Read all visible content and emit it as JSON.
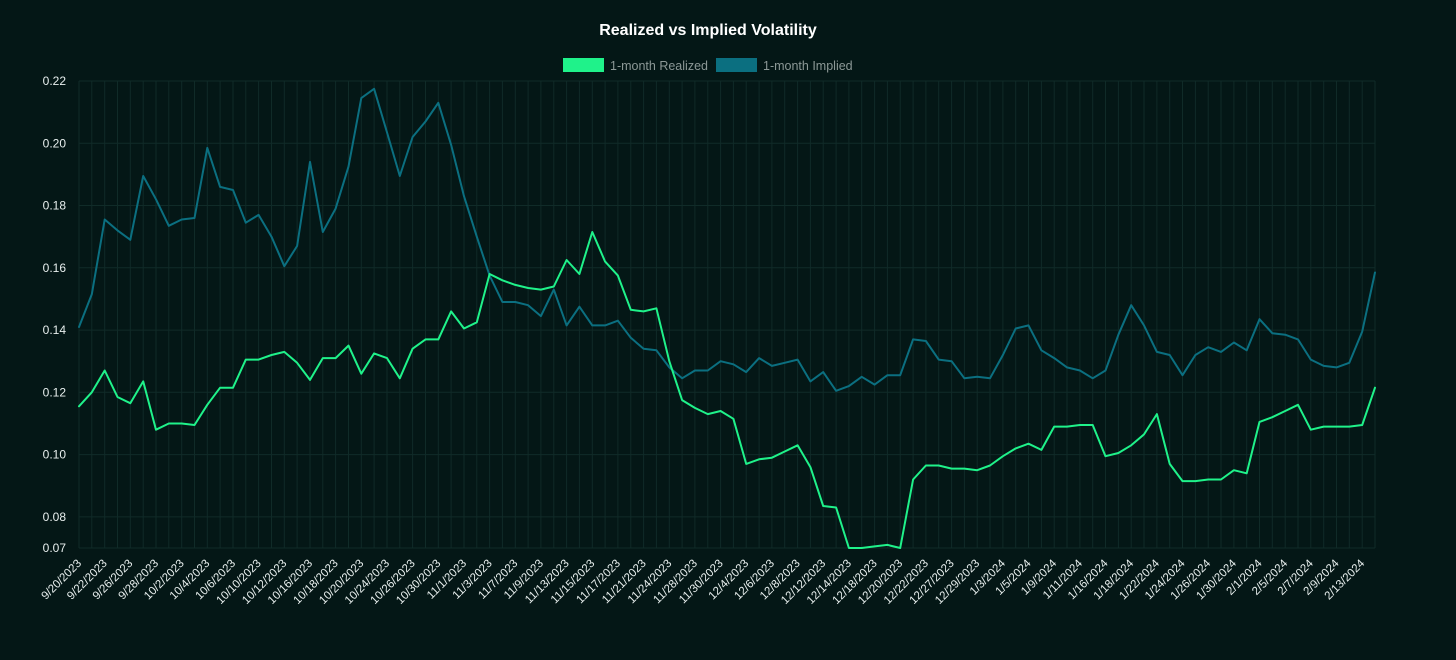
{
  "chart_data": {
    "type": "line",
    "title": "Realized vs Implied Volatility",
    "xlabel": "",
    "ylabel": "",
    "ylim": [
      0.07,
      0.22
    ],
    "yticks": [
      "0.22",
      "0.20",
      "0.18",
      "0.16",
      "0.14",
      "0.12",
      "0.10",
      "0.08",
      "0.07"
    ],
    "legend_position": "top-center",
    "grid": true,
    "series": [
      {
        "name": "1-month Realized",
        "color": "#1ff28a",
        "values": [
          0.1155,
          0.12,
          0.127,
          0.1185,
          0.1165,
          0.1235,
          0.108,
          0.11,
          0.11,
          0.1095,
          0.116,
          0.1215,
          0.1215,
          0.1305,
          0.1305,
          0.132,
          0.133,
          0.1295,
          0.124,
          0.131,
          0.131,
          0.135,
          0.126,
          0.1325,
          0.131,
          0.1245,
          0.134,
          0.137,
          0.137,
          0.146,
          0.1405,
          0.1425,
          0.158,
          0.156,
          0.1545,
          0.1535,
          0.153,
          0.154,
          0.1625,
          0.158,
          0.1715,
          0.162,
          0.1575,
          0.1465,
          0.146,
          0.147,
          0.13,
          0.1175,
          0.115,
          0.113,
          0.114,
          0.1115,
          0.097,
          0.0985,
          0.099,
          0.101,
          0.103,
          0.096,
          0.0835,
          0.083,
          0.07,
          0.07,
          0.0705,
          0.071,
          0.07,
          0.092,
          0.0965,
          0.0965,
          0.0955,
          0.0955,
          0.095,
          0.0965,
          0.0995,
          0.102,
          0.1035,
          0.1015,
          0.109,
          0.109,
          0.1095,
          0.1095,
          0.0995,
          0.1005,
          0.103,
          0.1065,
          0.113,
          0.097,
          0.0915,
          0.0915,
          0.092,
          0.092,
          0.095,
          0.094,
          0.1105,
          0.112,
          0.114,
          0.116,
          0.108,
          0.109,
          0.109,
          0.109,
          0.1095,
          0.1215
        ]
      },
      {
        "name": "1-month Implied",
        "color": "#0b6f80",
        "values": [
          0.141,
          0.1515,
          0.1755,
          0.172,
          0.169,
          0.1895,
          0.182,
          0.1735,
          0.1755,
          0.176,
          0.1985,
          0.186,
          0.185,
          0.1745,
          0.177,
          0.17,
          0.1605,
          0.167,
          0.194,
          0.1715,
          0.179,
          0.1925,
          0.2145,
          0.2175,
          0.2035,
          0.1895,
          0.202,
          0.207,
          0.213,
          0.1995,
          0.183,
          0.17,
          0.1575,
          0.149,
          0.149,
          0.148,
          0.1445,
          0.153,
          0.1415,
          0.1475,
          0.1415,
          0.1415,
          0.143,
          0.1375,
          0.134,
          0.1335,
          0.128,
          0.1245,
          0.127,
          0.127,
          0.13,
          0.129,
          0.1265,
          0.131,
          0.1285,
          0.1295,
          0.1305,
          0.1235,
          0.1265,
          0.1205,
          0.122,
          0.125,
          0.1225,
          0.1255,
          0.1255,
          0.137,
          0.1365,
          0.1305,
          0.13,
          0.1245,
          0.125,
          0.1245,
          0.132,
          0.1405,
          0.1415,
          0.1335,
          0.131,
          0.128,
          0.127,
          0.1245,
          0.127,
          0.1385,
          0.148,
          0.1415,
          0.133,
          0.132,
          0.1255,
          0.132,
          0.1345,
          0.133,
          0.136,
          0.1335,
          0.1435,
          0.139,
          0.1385,
          0.137,
          0.1305,
          0.1285,
          0.128,
          0.1295,
          0.1395,
          0.1585
        ]
      }
    ],
    "x_tick_labels": [
      "9/20/2023",
      "9/22/2023",
      "9/26/2023",
      "9/28/2023",
      "10/2/2023",
      "10/4/2023",
      "10/6/2023",
      "10/10/2023",
      "10/12/2023",
      "10/16/2023",
      "10/18/2023",
      "10/20/2023",
      "10/24/2023",
      "10/26/2023",
      "10/30/2023",
      "11/1/2023",
      "11/3/2023",
      "11/7/2023",
      "11/9/2023",
      "11/13/2023",
      "11/15/2023",
      "11/17/2023",
      "11/21/2023",
      "11/24/2023",
      "11/28/2023",
      "11/30/2023",
      "12/4/2023",
      "12/6/2023",
      "12/8/2023",
      "12/12/2023",
      "12/14/2023",
      "12/18/2023",
      "12/20/2023",
      "12/22/2023",
      "12/27/2023",
      "12/29/2023",
      "1/3/2024",
      "1/5/2024",
      "1/9/2024",
      "1/11/2024",
      "1/16/2024",
      "1/18/2024",
      "1/22/2024",
      "1/24/2024",
      "1/26/2024",
      "1/30/2024",
      "2/1/2024",
      "2/5/2024",
      "2/7/2024",
      "2/9/2024",
      "2/13/2024"
    ]
  }
}
